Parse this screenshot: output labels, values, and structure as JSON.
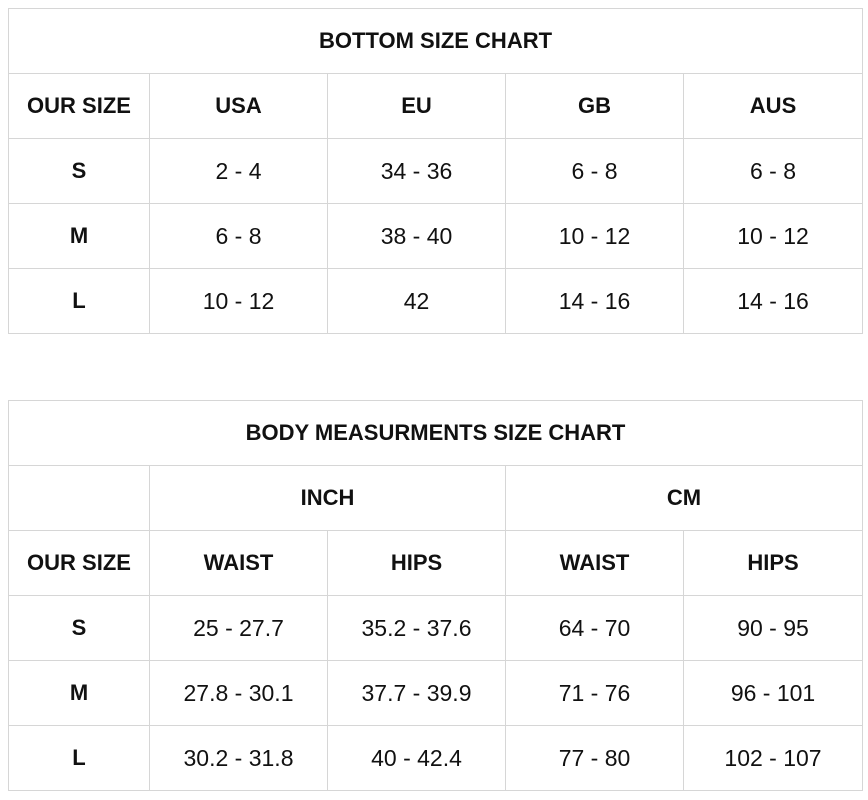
{
  "bottom_chart": {
    "title": "BOTTOM SIZE CHART",
    "headers": [
      "OUR SIZE",
      "USA",
      "EU",
      "GB",
      "AUS"
    ],
    "rows": [
      [
        "S",
        "2 - 4",
        "34 - 36",
        "6 - 8",
        "6 - 8"
      ],
      [
        "M",
        "6 - 8",
        "38 - 40",
        "10 - 12",
        "10 - 12"
      ],
      [
        "L",
        "10 - 12",
        "42",
        "14 - 16",
        "14 - 16"
      ]
    ]
  },
  "body_chart": {
    "title": "BODY MEASURMENTS SIZE CHART",
    "groups": [
      "INCH",
      "CM"
    ],
    "headers": [
      "OUR SIZE",
      "WAIST",
      "HIPS",
      "WAIST",
      "HIPS"
    ],
    "rows": [
      [
        "S",
        "25 - 27.7",
        "35.2 - 37.6",
        "64 - 70",
        "90 - 95"
      ],
      [
        "M",
        "27.8 - 30.1",
        "37.7 - 39.9",
        "71 - 76",
        "96 - 101"
      ],
      [
        "L",
        "30.2 - 31.8",
        "40 - 42.4",
        "77 - 80",
        "102 - 107"
      ]
    ]
  }
}
